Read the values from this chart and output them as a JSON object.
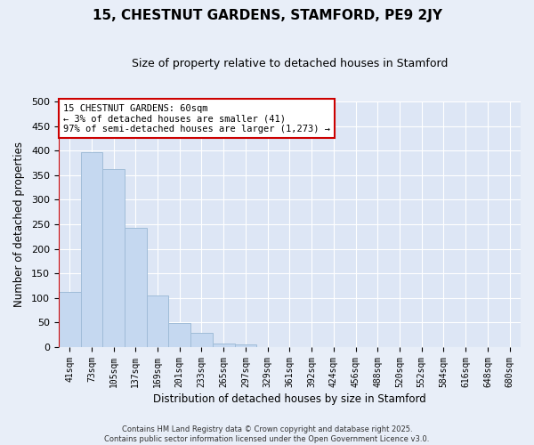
{
  "title": "15, CHESTNUT GARDENS, STAMFORD, PE9 2JY",
  "subtitle": "Size of property relative to detached houses in Stamford",
  "xlabel": "Distribution of detached houses by size in Stamford",
  "ylabel": "Number of detached properties",
  "categories": [
    "41sqm",
    "73sqm",
    "105sqm",
    "137sqm",
    "169sqm",
    "201sqm",
    "233sqm",
    "265sqm",
    "297sqm",
    "329sqm",
    "361sqm",
    "392sqm",
    "424sqm",
    "456sqm",
    "488sqm",
    "520sqm",
    "552sqm",
    "584sqm",
    "616sqm",
    "648sqm",
    "680sqm"
  ],
  "values": [
    113,
    397,
    363,
    243,
    105,
    49,
    29,
    8,
    5,
    0,
    0,
    0,
    0,
    0,
    0,
    0,
    0,
    0,
    0,
    0,
    0
  ],
  "bar_color": "#c5d8f0",
  "bar_edge_color": "#a0bcd8",
  "marker_color": "#cc0000",
  "ylim": [
    0,
    500
  ],
  "yticks": [
    0,
    50,
    100,
    150,
    200,
    250,
    300,
    350,
    400,
    450,
    500
  ],
  "annotation_title": "15 CHESTNUT GARDENS: 60sqm",
  "annotation_line1": "← 3% of detached houses are smaller (41)",
  "annotation_line2": "97% of semi-detached houses are larger (1,273) →",
  "annotation_box_color": "#ffffff",
  "annotation_box_edge": "#cc0000",
  "background_color": "#e8eef8",
  "plot_bg_color": "#dde6f5",
  "grid_color": "#ffffff",
  "footer1": "Contains HM Land Registry data © Crown copyright and database right 2025.",
  "footer2": "Contains public sector information licensed under the Open Government Licence v3.0."
}
